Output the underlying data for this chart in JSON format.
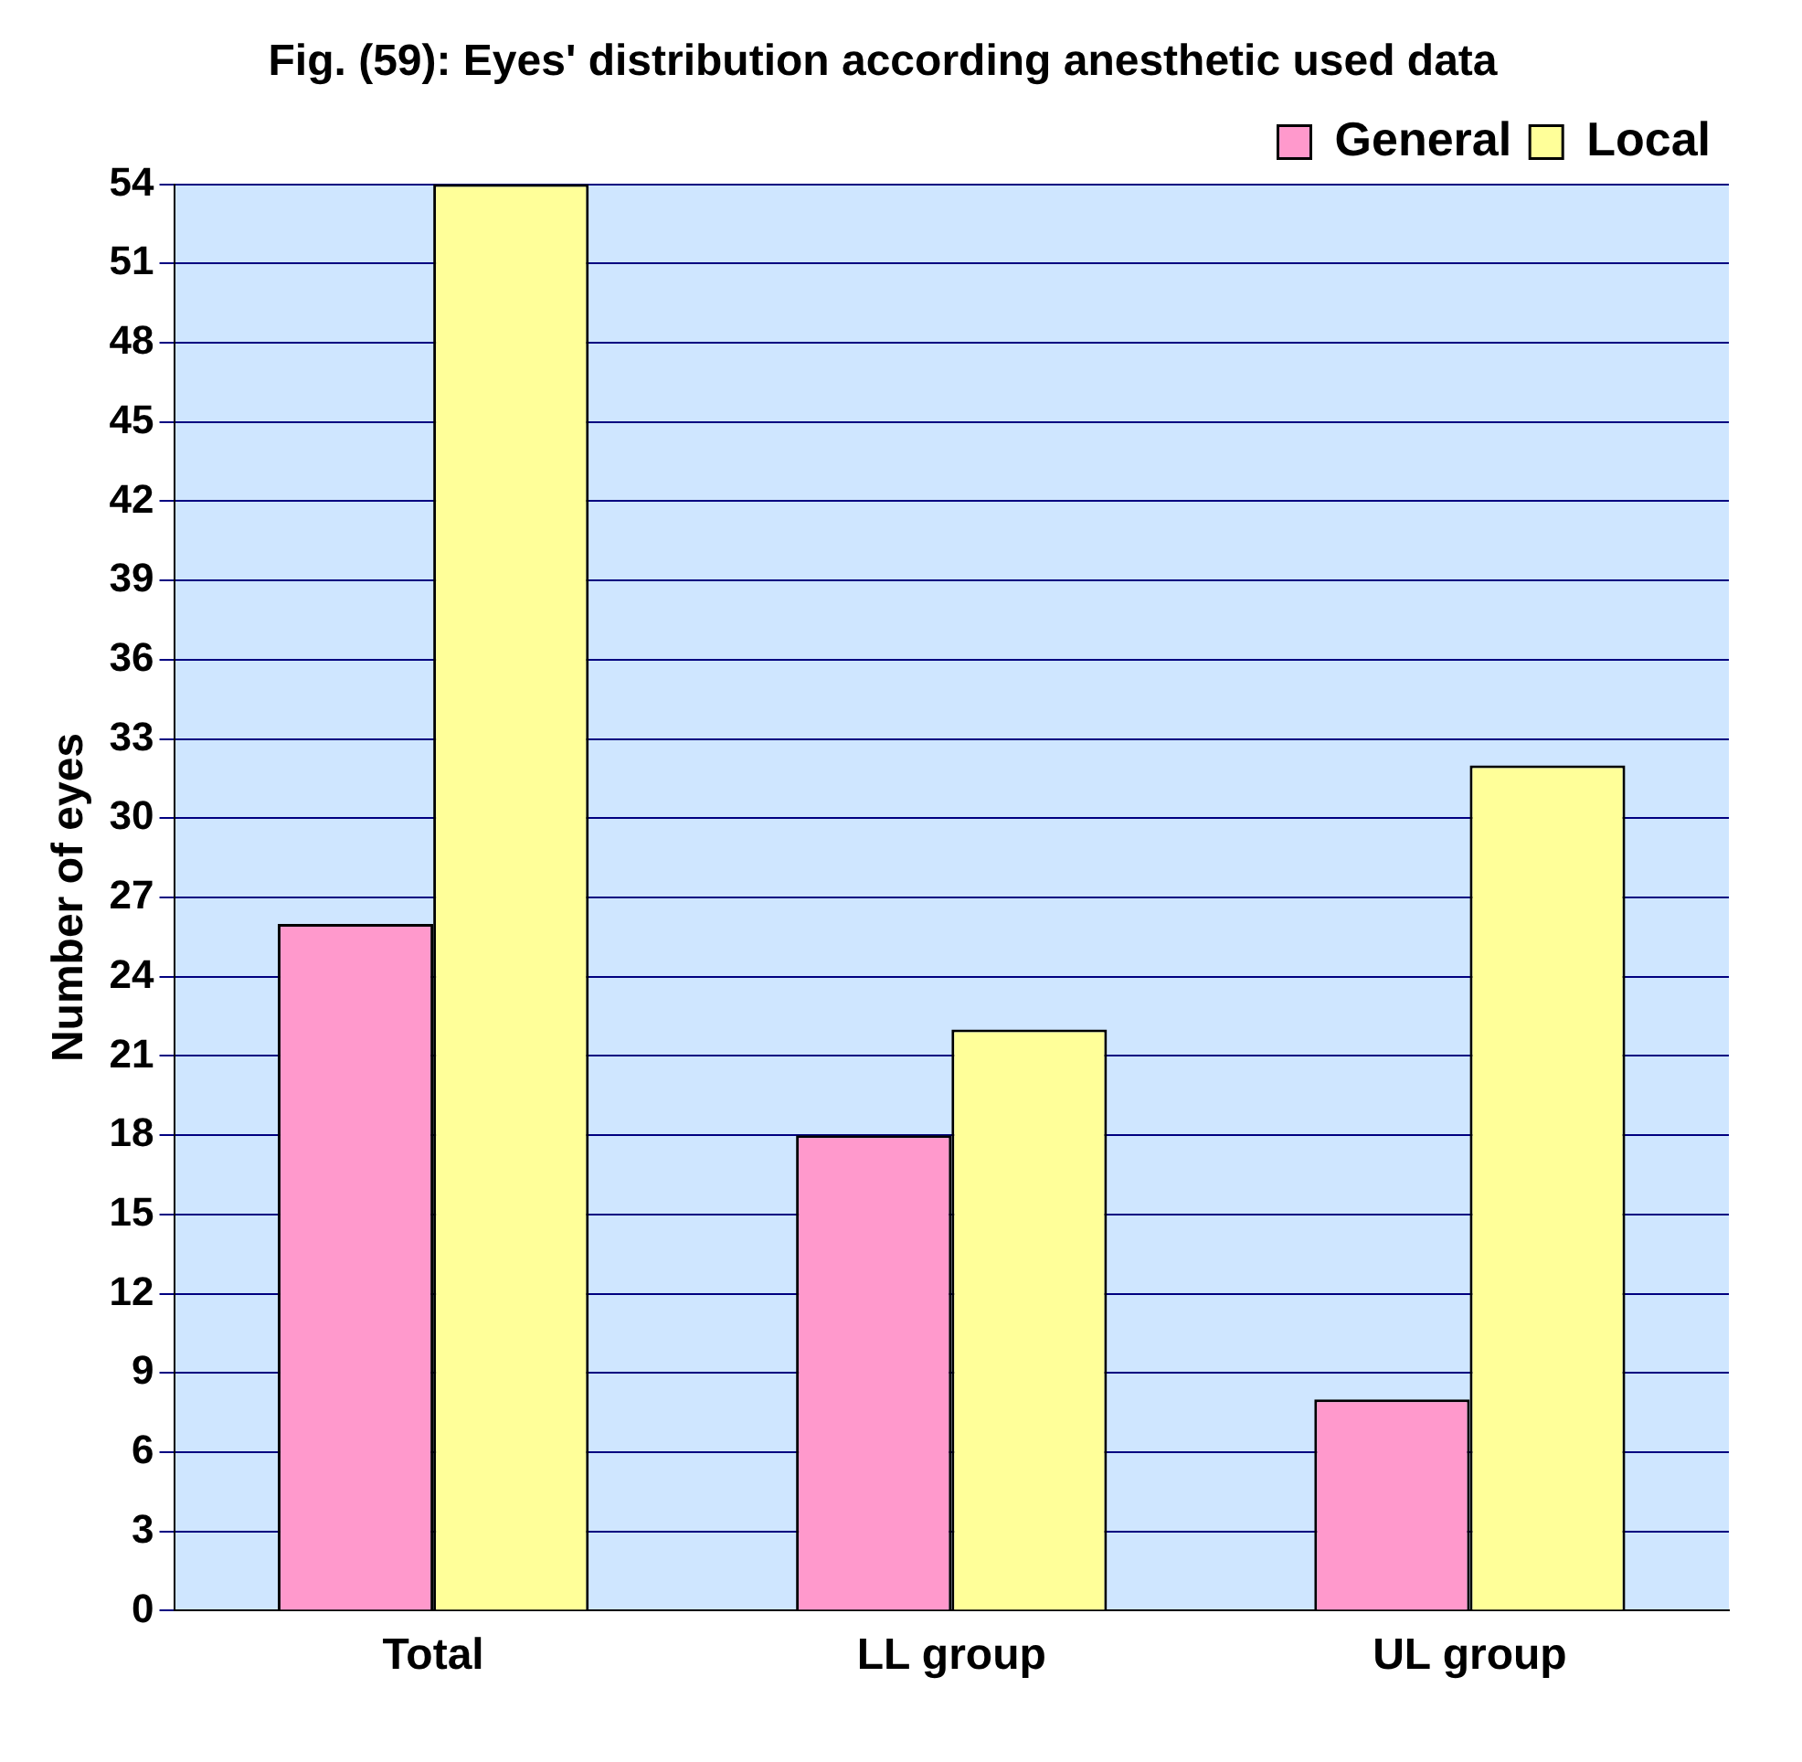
{
  "chart_data": {
    "type": "bar",
    "title": "Fig. (59): Eyes' distribution according anesthetic used data",
    "ylabel": "Number of eyes",
    "categories": [
      "Total",
      "LL group",
      "UL group"
    ],
    "series": [
      {
        "name": "General",
        "color": "#ff99cc",
        "values": [
          26,
          18,
          8
        ]
      },
      {
        "name": "Local",
        "color": "#ffff99",
        "values": [
          54,
          22,
          32
        ]
      }
    ],
    "ylim": [
      0,
      54
    ],
    "yticks": [
      0,
      3,
      6,
      9,
      12,
      15,
      18,
      21,
      24,
      27,
      30,
      33,
      36,
      39,
      42,
      45,
      48,
      51,
      54
    ],
    "grid": "y",
    "legend": "top right"
  }
}
